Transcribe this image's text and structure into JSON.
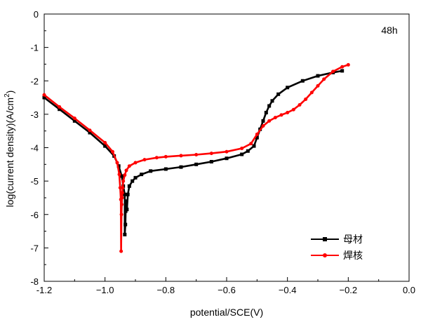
{
  "chart_data": {
    "type": "line",
    "annotation": "48h",
    "xlabel": "potential/SCE(V)",
    "ylabel": "log(current density)(A/cm²)",
    "ylabel_main": "log(current density)(A/cm",
    "ylabel_sup": "2",
    "ylabel_end": ")",
    "xlim": [
      -1.2,
      0.0
    ],
    "ylim": [
      -8,
      0
    ],
    "xticks": [
      -1.2,
      -1.0,
      -0.8,
      -0.6,
      -0.4,
      -0.2,
      0.0
    ],
    "xtick_labels": [
      "-1.2",
      "−1.0",
      "−0.8",
      "−0.6",
      "−0.4",
      "−0.2",
      "0.0"
    ],
    "yticks": [
      0,
      -1,
      -2,
      -3,
      -4,
      -5,
      -6,
      -7,
      -8
    ],
    "ytick_labels": [
      "0",
      "-1",
      "-2",
      "-3",
      "-4",
      "-5",
      "-6",
      "-7",
      "-8"
    ],
    "legend_position": "bottom-right",
    "series": [
      {
        "name": "母材",
        "color": "#000000",
        "marker": "square",
        "x": [
          -1.2,
          -1.15,
          -1.1,
          -1.05,
          -1.0,
          -0.97,
          -0.955,
          -0.945,
          -0.94,
          -0.935,
          -0.935,
          -0.933,
          -0.932,
          -0.931,
          -0.93,
          -0.928,
          -0.925,
          -0.92,
          -0.91,
          -0.9,
          -0.88,
          -0.85,
          -0.8,
          -0.75,
          -0.7,
          -0.65,
          -0.6,
          -0.55,
          -0.53,
          -0.51,
          -0.5,
          -0.49,
          -0.48,
          -0.47,
          -0.46,
          -0.45,
          -0.43,
          -0.4,
          -0.35,
          -0.3,
          -0.25,
          -0.22
        ],
        "y": [
          -2.5,
          -2.85,
          -3.2,
          -3.55,
          -3.95,
          -4.25,
          -4.55,
          -4.85,
          -5.15,
          -5.4,
          -6.6,
          -6.3,
          -5.9,
          -5.6,
          -5.75,
          -5.85,
          -5.4,
          -5.15,
          -5.0,
          -4.9,
          -4.8,
          -4.7,
          -4.64,
          -4.58,
          -4.5,
          -4.42,
          -4.32,
          -4.2,
          -4.1,
          -3.95,
          -3.7,
          -3.45,
          -3.2,
          -2.95,
          -2.75,
          -2.6,
          -2.4,
          -2.2,
          -2.0,
          -1.85,
          -1.75,
          -1.7
        ]
      },
      {
        "name": "焊核",
        "color": "#ff0000",
        "marker": "circle",
        "x": [
          -1.2,
          -1.15,
          -1.1,
          -1.05,
          -1.0,
          -0.975,
          -0.96,
          -0.953,
          -0.95,
          -0.948,
          -0.947,
          -0.946,
          -0.945,
          -0.944,
          -0.943,
          -0.942,
          -0.94,
          -0.935,
          -0.93,
          -0.92,
          -0.9,
          -0.87,
          -0.83,
          -0.8,
          -0.75,
          -0.7,
          -0.65,
          -0.6,
          -0.55,
          -0.52,
          -0.5,
          -0.48,
          -0.46,
          -0.44,
          -0.42,
          -0.4,
          -0.38,
          -0.36,
          -0.34,
          -0.32,
          -0.3,
          -0.28,
          -0.25,
          -0.22,
          -0.2
        ],
        "y": [
          -2.42,
          -2.78,
          -3.12,
          -3.48,
          -3.85,
          -4.12,
          -4.45,
          -4.8,
          -5.2,
          -5.55,
          -7.1,
          -6.0,
          -5.7,
          -5.5,
          -5.35,
          -5.2,
          -5.0,
          -4.82,
          -4.68,
          -4.55,
          -4.45,
          -4.36,
          -4.3,
          -4.27,
          -4.24,
          -4.21,
          -4.17,
          -4.12,
          -4.02,
          -3.88,
          -3.6,
          -3.35,
          -3.2,
          -3.1,
          -3.02,
          -2.95,
          -2.86,
          -2.72,
          -2.55,
          -2.35,
          -2.15,
          -1.95,
          -1.72,
          -1.58,
          -1.52
        ]
      }
    ]
  }
}
